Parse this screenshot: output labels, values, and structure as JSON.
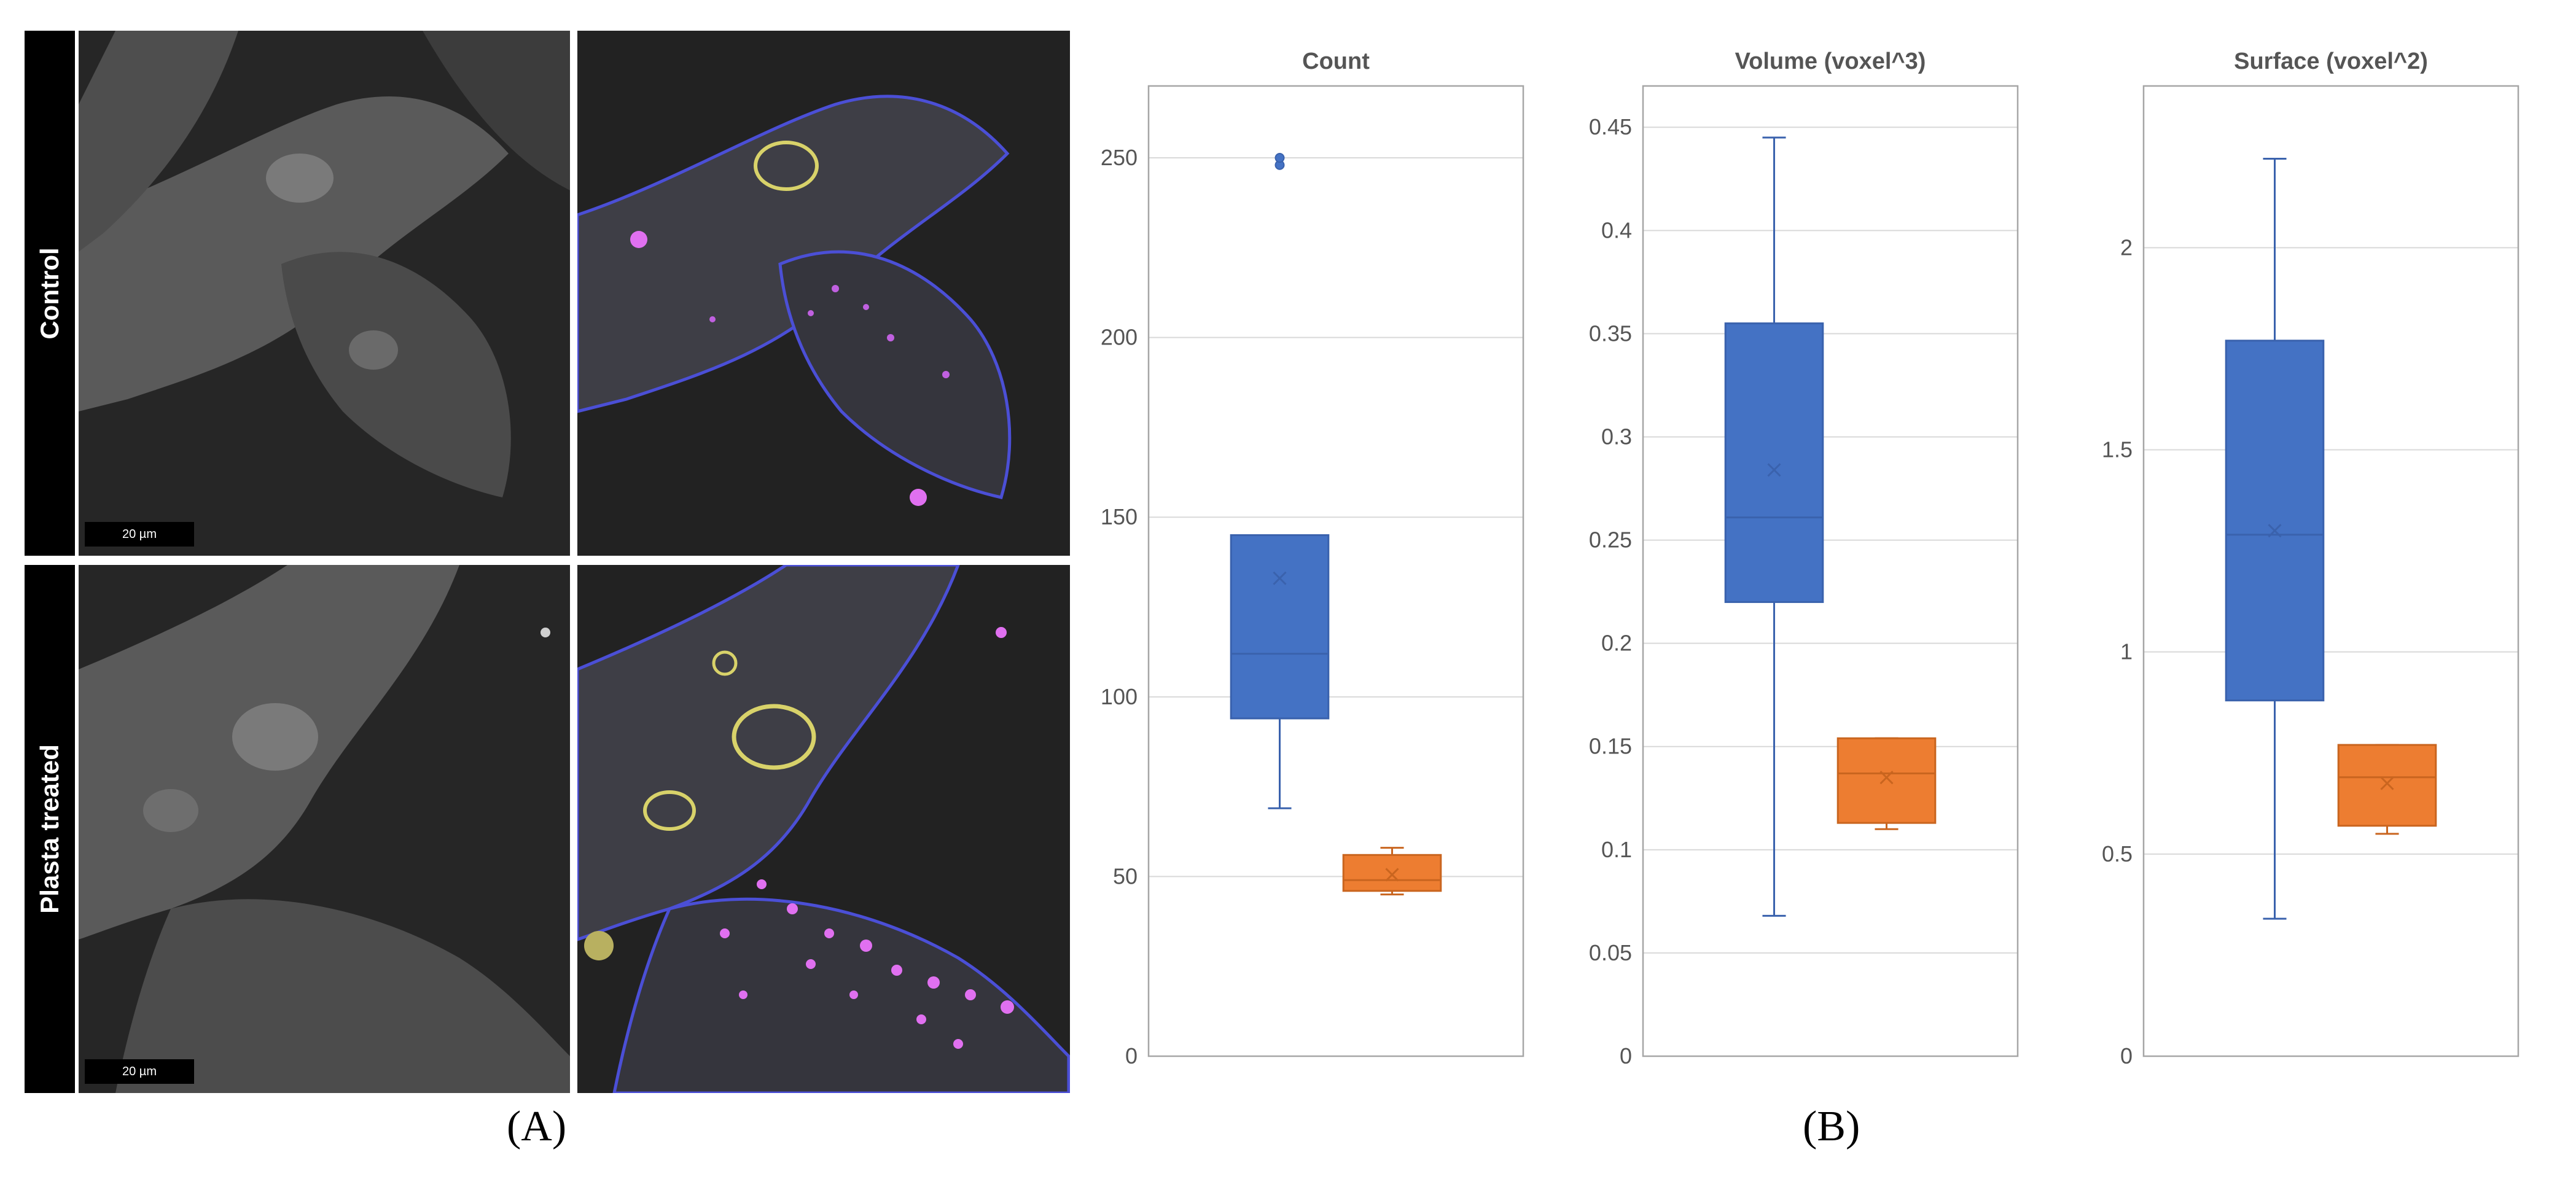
{
  "panel_a": {
    "caption": "(A)",
    "rows": [
      {
        "label": "Control",
        "scalebar": "20 µm"
      },
      {
        "label": "Plasta treated",
        "scalebar": "20 µm"
      }
    ]
  },
  "panel_b": {
    "caption": "(B)"
  },
  "colors": {
    "blue": "#4472C4",
    "orange": "#ED7D31",
    "grid": "#D9D9D9",
    "frame": "#A6A6A6",
    "text": "#555555"
  },
  "chart_data": [
    {
      "type": "box",
      "title": "Count",
      "ylim": [
        0,
        270
      ],
      "ticks": [
        0,
        50,
        100,
        150,
        200,
        250
      ],
      "tick_labels": [
        "0",
        "50",
        "100",
        "150",
        "200",
        "250"
      ],
      "series": [
        {
          "name": "Control",
          "color": "#4472C4",
          "min": 69,
          "q1": 94,
          "median": 112,
          "q3": 145,
          "max": 145,
          "mean": 133,
          "outliers": [
            248,
            250
          ]
        },
        {
          "name": "Plasta treated",
          "color": "#ED7D31",
          "min": 45,
          "q1": 46,
          "median": 49,
          "q3": 56,
          "max": 58,
          "mean": 50.5,
          "outliers": []
        }
      ]
    },
    {
      "type": "box",
      "title": "Volume (voxel^3)",
      "ylim": [
        0,
        0.47
      ],
      "ticks": [
        0,
        0.05,
        0.1,
        0.15,
        0.2,
        0.25,
        0.3,
        0.35,
        0.4,
        0.45
      ],
      "tick_labels": [
        "0",
        "0.05",
        "0.1",
        "0.15",
        "0.2",
        "0.25",
        "0.3",
        "0.35",
        "0.4",
        "0.45"
      ],
      "series": [
        {
          "name": "Control",
          "color": "#4472C4",
          "min": 0.068,
          "q1": 0.22,
          "median": 0.261,
          "q3": 0.355,
          "max": 0.445,
          "mean": 0.284,
          "outliers": []
        },
        {
          "name": "Plasta treated",
          "color": "#ED7D31",
          "min": 0.11,
          "q1": 0.113,
          "median": 0.137,
          "q3": 0.154,
          "max": 0.154,
          "mean": 0.135,
          "outliers": []
        }
      ]
    },
    {
      "type": "box",
      "title": "Surface (voxel^2)",
      "ylim": [
        0,
        2.4
      ],
      "ticks": [
        0,
        0.5,
        1,
        1.5,
        2
      ],
      "tick_labels": [
        "0",
        "0.5",
        "1",
        "1.5",
        "2"
      ],
      "series": [
        {
          "name": "Control",
          "color": "#4472C4",
          "min": 0.34,
          "q1": 0.88,
          "median": 1.29,
          "q3": 1.77,
          "max": 2.22,
          "mean": 1.3,
          "outliers": []
        },
        {
          "name": "Plasta treated",
          "color": "#ED7D31",
          "min": 0.55,
          "q1": 0.57,
          "median": 0.69,
          "q3": 0.77,
          "max": 0.77,
          "mean": 0.675,
          "outliers": []
        }
      ]
    }
  ]
}
